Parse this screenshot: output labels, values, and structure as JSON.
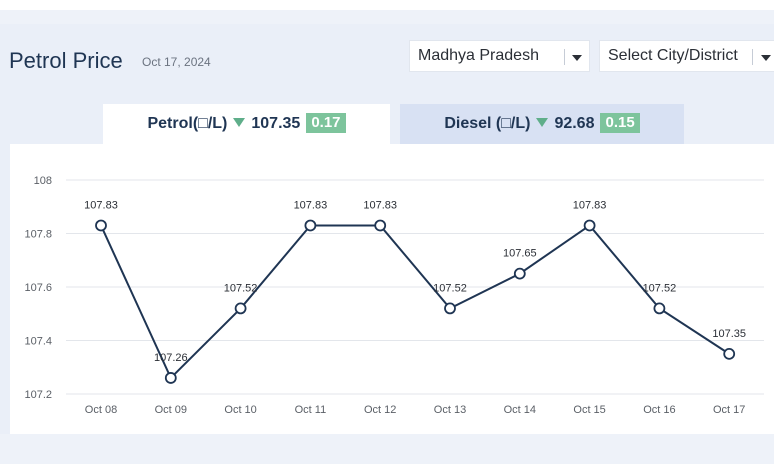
{
  "header": {
    "title": "Petrol Price",
    "date": "Oct 17, 2024"
  },
  "selectors": {
    "state": "Madhya Pradesh",
    "city": "Select City/District"
  },
  "tabs": {
    "petrol": {
      "label": "Petrol(□/L)",
      "price": "107.35",
      "change": "0.17"
    },
    "diesel": {
      "label": "Diesel (□/L)",
      "price": "92.68",
      "change": "0.15"
    }
  },
  "colors": {
    "line": "#1f3553",
    "change_down": "#5fae8a",
    "badge": "#7dc49c",
    "active_tab": "#ffffff",
    "inactive_tab": "#d8e1f3"
  },
  "chart_data": {
    "type": "line",
    "categories": [
      "Oct 08",
      "Oct 09",
      "Oct 10",
      "Oct 11",
      "Oct 12",
      "Oct 13",
      "Oct 14",
      "Oct 15",
      "Oct 16",
      "Oct 17"
    ],
    "series": [
      {
        "values": [
          107.83,
          107.26,
          107.52,
          107.83,
          107.83,
          107.52,
          107.65,
          107.83,
          107.52,
          107.35
        ]
      }
    ],
    "data_labels": [
      "107.83",
      "107.26",
      "107.52",
      "107.83",
      "107.83",
      "107.52",
      "107.65",
      "107.83",
      "107.52",
      "107.35"
    ],
    "y_ticks": [
      "108",
      "107.8",
      "107.6",
      "107.4",
      "107.2"
    ],
    "ylim": [
      107.2,
      108
    ],
    "grid": true,
    "title": "",
    "xlabel": "",
    "ylabel": ""
  }
}
